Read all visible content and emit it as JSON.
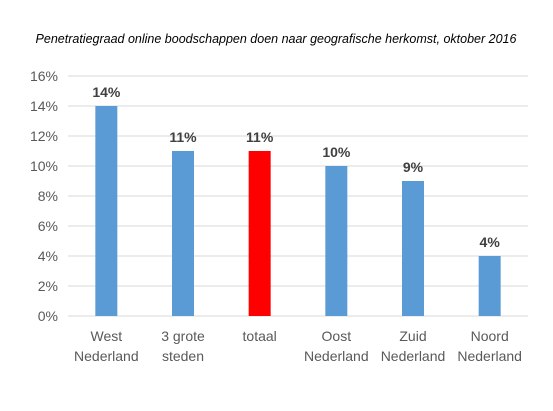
{
  "chart_data": {
    "type": "bar",
    "title": "Penetratiegraad online boodschappen doen naar geografische herkomst, oktober 2016",
    "xlabel": "",
    "ylabel": "",
    "categories": [
      [
        "West",
        "Nederland"
      ],
      [
        "3 grote",
        "steden"
      ],
      [
        "totaal"
      ],
      [
        "Oost",
        "Nederland"
      ],
      [
        "Zuid",
        "Nederland"
      ],
      [
        "Noord",
        "Nederland"
      ]
    ],
    "values": [
      14,
      11,
      11,
      10,
      9,
      4
    ],
    "data_labels": [
      "14%",
      "11%",
      "11%",
      "10%",
      "9%",
      "4%"
    ],
    "bar_colors": [
      "#5b9bd5",
      "#5b9bd5",
      "#ff0000",
      "#5b9bd5",
      "#5b9bd5",
      "#5b9bd5"
    ],
    "ylim": [
      0,
      16
    ],
    "y_ticks": [
      0,
      2,
      4,
      6,
      8,
      10,
      12,
      14,
      16
    ],
    "y_tick_labels": [
      "0%",
      "2%",
      "4%",
      "6%",
      "8%",
      "10%",
      "12%",
      "14%",
      "16%"
    ],
    "grid": true,
    "legend": "none"
  }
}
